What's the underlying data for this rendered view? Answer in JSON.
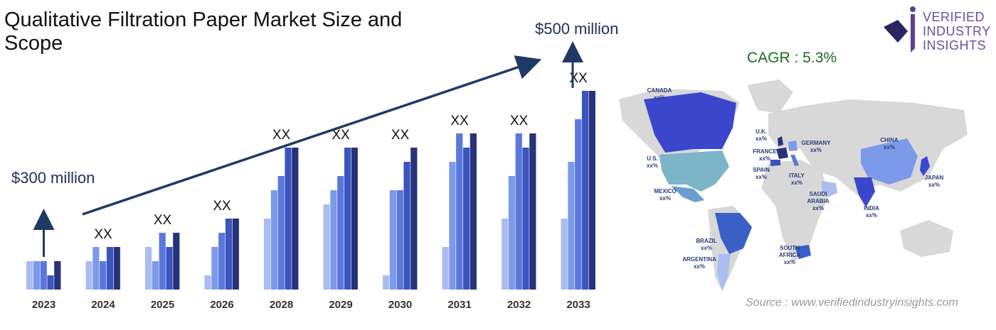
{
  "title": "Qualitative Filtration Paper  Market Size and Scope",
  "start_label": "$300 million",
  "end_label": "$500 million",
  "cagr": "CAGR : 5.3%",
  "source": "Source : www.verifiedindustryinsights.com",
  "logo": {
    "line1": "VERIFIED",
    "line2": "INDUSTRY",
    "line3": "INSIGHTS",
    "icon": "vii-logo-icon"
  },
  "colors": {
    "b1": "#a9bdf0",
    "b2": "#7c9aea",
    "b3": "#5a78dc",
    "b4": "#3a55bf",
    "b5": "#26327a",
    "arrow": "#1e3a64",
    "map_base": "#d8d8d8"
  },
  "chart_data": {
    "type": "bar",
    "categories": [
      "2023",
      "2024",
      "2025",
      "2026",
      "2028",
      "2029",
      "2030",
      "2031",
      "2032",
      "2033"
    ],
    "bar_labels": [
      "",
      "XX",
      "XX",
      "XX",
      "XX",
      "XX",
      "XX",
      "XX",
      "XX",
      "XX"
    ],
    "ylim": [
      0,
      15
    ],
    "series": [
      {
        "values": [
          2,
          2,
          3,
          1,
          5,
          6,
          1,
          3,
          5,
          5
        ]
      },
      {
        "values": [
          2,
          3,
          2,
          3,
          7,
          7,
          7,
          9,
          8,
          9
        ]
      },
      {
        "values": [
          2,
          2,
          4,
          4,
          8,
          8,
          7,
          11,
          11,
          12
        ]
      },
      {
        "values": [
          1,
          3,
          3,
          5,
          10,
          10,
          9,
          10,
          10,
          14
        ]
      },
      {
        "values": [
          2,
          3,
          4,
          5,
          10,
          10,
          10,
          11,
          11,
          14
        ]
      }
    ]
  },
  "map_labels": [
    {
      "name": "CANADA",
      "value": "xx%"
    },
    {
      "name": "U.S.",
      "value": "xx%"
    },
    {
      "name": "MEXICO",
      "value": "xx%"
    },
    {
      "name": "BRAZIL",
      "value": "xx%"
    },
    {
      "name": "ARGENTINA",
      "value": "xx%"
    },
    {
      "name": "U.K.",
      "value": "xx%"
    },
    {
      "name": "FRANCE",
      "value": "xx%"
    },
    {
      "name": "GERMANY",
      "value": "xx%"
    },
    {
      "name": "SPAIN",
      "value": "xx%"
    },
    {
      "name": "ITALY",
      "value": "xx%"
    },
    {
      "name": "SAUDI",
      "value": "ARABIA"
    },
    {
      "name": "SOUTH",
      "value": "AFRICA"
    },
    {
      "name": "CHINA",
      "value": "xx%"
    },
    {
      "name": "INDIA",
      "value": "xx%"
    },
    {
      "name": "JAPAN",
      "value": "xx%"
    }
  ],
  "saudi_value": "xx%",
  "south_africa_value": "xx%"
}
